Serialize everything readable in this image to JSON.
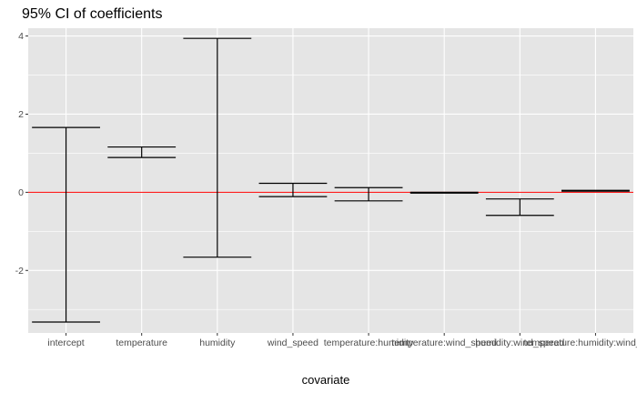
{
  "chart_data": {
    "type": "errorbar",
    "title": "95% CI of coefficients",
    "xlabel": "covariate",
    "ylabel": "",
    "categories": [
      "intercept",
      "temperature",
      "humidity",
      "wind_speed",
      "temperature:humidity",
      "temperature:wind_speed",
      "humidity:wind_speed",
      "temperature:humidity:wind_speed"
    ],
    "lower": [
      -3.32,
      0.89,
      -1.66,
      -0.11,
      -0.22,
      -0.02,
      -0.59,
      0.03
    ],
    "upper": [
      1.66,
      1.16,
      3.94,
      0.23,
      0.12,
      0.0,
      -0.17,
      0.05
    ],
    "reference_line": 0,
    "ylim": [
      -3.6,
      4.2
    ],
    "yticks": [
      -2,
      0,
      2,
      4
    ],
    "grid": true,
    "colors": {
      "panel": "#e5e5e5",
      "grid_major": "#ffffff",
      "errorbar": "#000000",
      "reference_line": "#ff0000"
    }
  }
}
